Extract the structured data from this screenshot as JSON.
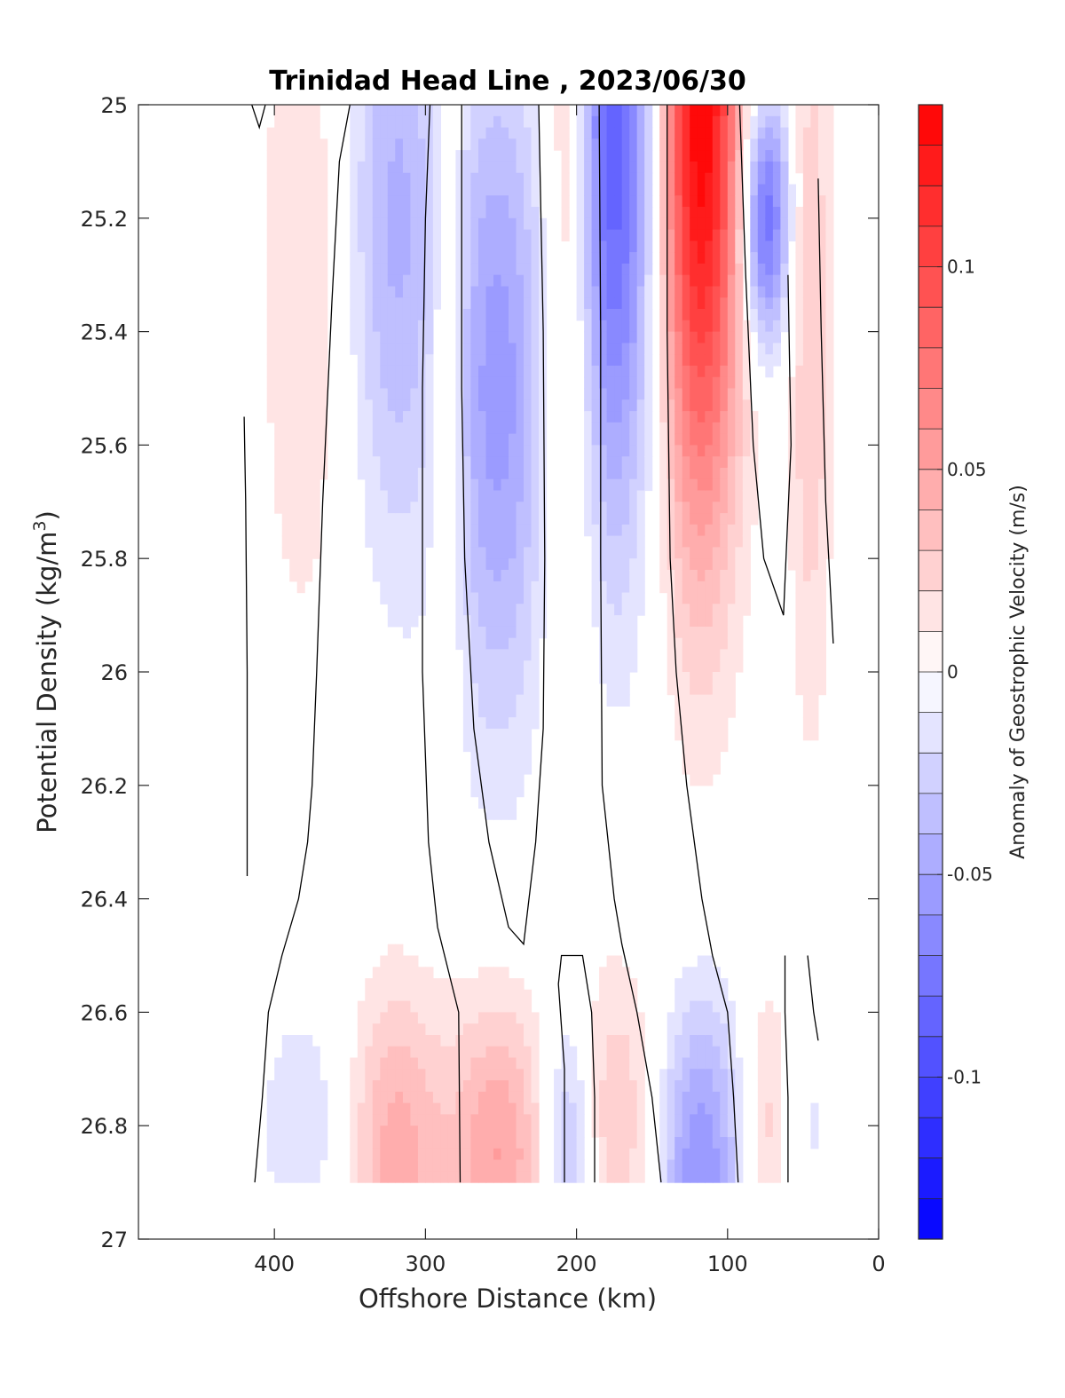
{
  "chart_data": {
    "type": "heatmap",
    "title": "Trinidad Head Line , 2023/06/30",
    "xlabel": "Offshore Distance (km)",
    "ylabel_main": "Potential Density (kg/m",
    "ylabel_sup": "3",
    "ylabel_close": ")",
    "colorbar_label": "Anomaly of Geostrophic Velocity (m/s)",
    "xlim": [
      490,
      0
    ],
    "x_reversed": true,
    "ylim": [
      25,
      27
    ],
    "y_reversed": true,
    "x_ticks": [
      400,
      300,
      200,
      100,
      0
    ],
    "x_tick_labels": [
      "400",
      "300",
      "200",
      "100",
      "0"
    ],
    "y_ticks": [
      25,
      25.2,
      25.4,
      25.6,
      25.8,
      26,
      26.2,
      26.4,
      26.6,
      26.8,
      27
    ],
    "y_tick_labels": [
      "25",
      "25.2",
      "25.4",
      "25.6",
      "25.8",
      "26",
      "26.2",
      "26.4",
      "26.6",
      "26.8",
      "27"
    ],
    "color_range": [
      -0.14,
      0.14
    ],
    "color_levels": 28,
    "colorbar_ticks": [
      0.1,
      0.05,
      0,
      -0.05,
      -0.1
    ],
    "colorbar_tick_labels": [
      "0.1",
      "0.05",
      "0",
      "-0.05",
      "-0.1"
    ],
    "colormap": {
      "negative": "#0000ff",
      "zero": "#ffffff",
      "positive": "#ff0000"
    },
    "zero_contour_color": "#000000",
    "data_y_range": [
      25,
      26.9
    ],
    "bands": [
      {
        "x_center": 380,
        "x_half_width": 42,
        "upper_value": 0.018,
        "upper_y_center": 25.3,
        "upper_y_spread": 0.75,
        "lower_value": -0.018,
        "lower_y_center": 26.8,
        "lower_y_spread": 0.25
      },
      {
        "x_center": 320,
        "x_half_width": 40,
        "upper_value": -0.042,
        "upper_y_center": 25.2,
        "upper_y_spread": 0.6,
        "lower_value": 0.045,
        "lower_y_center": 26.85,
        "lower_y_spread": 0.3
      },
      {
        "x_center": 285,
        "x_half_width": 15,
        "upper_value": 0.03,
        "upper_y_center": 25.4,
        "upper_y_spread": 0.6,
        "lower_value": 0.0,
        "lower_y_center": 26.8,
        "lower_y_spread": 0.2
      },
      {
        "x_center": 252,
        "x_half_width": 42,
        "upper_value": -0.055,
        "upper_y_center": 25.5,
        "upper_y_spread": 0.6,
        "lower_value": 0.05,
        "lower_y_center": 26.85,
        "lower_y_spread": 0.28
      },
      {
        "x_center": 205,
        "x_half_width": 22,
        "upper_value": 0.045,
        "upper_y_center": 25.15,
        "upper_y_spread": 0.8,
        "lower_value": -0.045,
        "lower_y_center": 26.85,
        "lower_y_spread": 0.25
      },
      {
        "x_center": 175,
        "x_half_width": 38,
        "upper_value": -0.09,
        "upper_y_center": 25.05,
        "upper_y_spread": 0.7,
        "lower_value": 0.03,
        "lower_y_center": 26.8,
        "lower_y_spread": 0.3
      },
      {
        "x_center": 118,
        "x_half_width": 35,
        "upper_value": 0.14,
        "upper_y_center": 25.0,
        "upper_y_spread": 0.75,
        "lower_value": -0.06,
        "lower_y_center": 26.88,
        "lower_y_spread": 0.3
      },
      {
        "x_center": 75,
        "x_half_width": 20,
        "upper_value": -0.085,
        "upper_y_center": 25.2,
        "upper_y_spread": 0.22,
        "lower_value": 0.025,
        "lower_y_center": 26.8,
        "lower_y_spread": 0.25
      },
      {
        "x_center": 45,
        "x_half_width": 18,
        "upper_value": 0.03,
        "upper_y_center": 25.4,
        "upper_y_spread": 0.7,
        "lower_value": -0.012,
        "lower_y_center": 26.8,
        "lower_y_spread": 0.15
      }
    ],
    "zero_contours": [
      [
        [
          420,
          25.55
        ],
        [
          419,
          25.7
        ],
        [
          418,
          26.0
        ],
        [
          418,
          26.36
        ]
      ],
      [
        [
          415,
          25.0
        ],
        [
          410,
          25.04
        ],
        [
          406,
          25.0
        ]
      ],
      [
        [
          350,
          25.0
        ],
        [
          357,
          25.1
        ],
        [
          362,
          25.35
        ],
        [
          368,
          25.7
        ],
        [
          372,
          26.0
        ],
        [
          375,
          26.2
        ],
        [
          378,
          26.3
        ],
        [
          384,
          26.4
        ],
        [
          395,
          26.5
        ],
        [
          404,
          26.6
        ],
        [
          408,
          26.75
        ],
        [
          413,
          26.9
        ]
      ],
      [
        [
          297,
          25.0
        ],
        [
          300,
          25.2
        ],
        [
          302,
          25.5
        ],
        [
          302,
          25.8
        ],
        [
          302,
          26.0
        ],
        [
          300,
          26.15
        ],
        [
          298,
          26.3
        ],
        [
          292,
          26.45
        ],
        [
          278,
          26.6
        ],
        [
          277,
          26.9
        ]
      ],
      [
        [
          225,
          25.0
        ],
        [
          222,
          25.4
        ],
        [
          221,
          25.8
        ],
        [
          222,
          26.1
        ],
        [
          227,
          26.3
        ],
        [
          235,
          26.48
        ],
        [
          245,
          26.45
        ],
        [
          258,
          26.3
        ],
        [
          268,
          26.1
        ],
        [
          274,
          25.8
        ],
        [
          276,
          25.5
        ],
        [
          276,
          25.0
        ]
      ],
      [
        [
          185,
          25.0
        ],
        [
          184,
          25.4
        ],
        [
          184,
          25.8
        ],
        [
          183,
          26.2
        ],
        [
          175,
          26.4
        ],
        [
          170,
          26.48
        ],
        [
          160,
          26.6
        ],
        [
          150,
          26.75
        ],
        [
          144,
          26.9
        ]
      ],
      [
        [
          140,
          25.0
        ],
        [
          140,
          25.4
        ],
        [
          138,
          25.8
        ],
        [
          134,
          26.0
        ],
        [
          127,
          26.2
        ],
        [
          117,
          26.4
        ],
        [
          110,
          26.5
        ],
        [
          100,
          26.6
        ],
        [
          96,
          26.75
        ],
        [
          93,
          26.9
        ]
      ],
      [
        [
          92,
          25.0
        ],
        [
          88,
          25.3
        ],
        [
          83,
          25.6
        ],
        [
          76,
          25.8
        ],
        [
          63,
          25.9
        ],
        [
          58,
          25.6
        ],
        [
          60,
          25.3
        ]
      ],
      [
        [
          40,
          25.13
        ],
        [
          38,
          25.4
        ],
        [
          35,
          25.7
        ],
        [
          30,
          25.95
        ]
      ],
      [
        [
          62,
          26.5
        ],
        [
          62,
          26.6
        ],
        [
          60,
          26.75
        ],
        [
          60,
          26.9
        ]
      ],
      [
        [
          47,
          26.5
        ],
        [
          43,
          26.6
        ],
        [
          40,
          26.65
        ]
      ],
      [
        [
          208,
          26.9
        ],
        [
          208,
          26.7
        ],
        [
          212,
          26.55
        ],
        [
          210,
          26.5
        ],
        [
          196,
          26.5
        ],
        [
          190,
          26.6
        ],
        [
          188,
          26.75
        ],
        [
          188,
          26.9
        ]
      ]
    ]
  }
}
